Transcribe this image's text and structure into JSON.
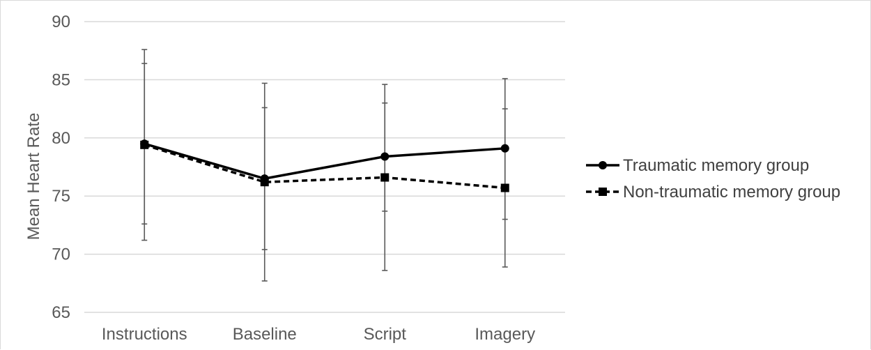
{
  "chart_data": {
    "type": "line",
    "categories": [
      "Instructions",
      "Baseline",
      "Script",
      "Imagery"
    ],
    "ylabel": "Mean Heart Rate",
    "xlabel": "",
    "ylim": [
      65,
      90
    ],
    "yticks": [
      "65",
      "70",
      "75",
      "80",
      "85",
      "90"
    ],
    "grid": true,
    "legend_position": "right",
    "series": [
      {
        "name": "Traumatic memory group",
        "values": [
          79.5,
          76.5,
          78.4,
          79.1
        ],
        "error_low": [
          71.2,
          67.7,
          68.6,
          68.9
        ],
        "error_high": [
          87.6,
          84.7,
          84.6,
          85.1
        ],
        "marker": "circle",
        "line_style": "solid",
        "color": "#000000"
      },
      {
        "name": "Non-traumatic memory group",
        "values": [
          79.4,
          76.2,
          76.6,
          75.7
        ],
        "error_low": [
          72.6,
          70.4,
          73.7,
          73.0
        ],
        "error_high": [
          86.4,
          82.6,
          83.0,
          82.5
        ],
        "marker": "square",
        "line_style": "dashed",
        "color": "#000000"
      }
    ],
    "colors": {
      "gridline": "#d9d9d9",
      "error_bar": "#595959",
      "tick_text": "#595959",
      "legend_text": "#404040"
    }
  }
}
